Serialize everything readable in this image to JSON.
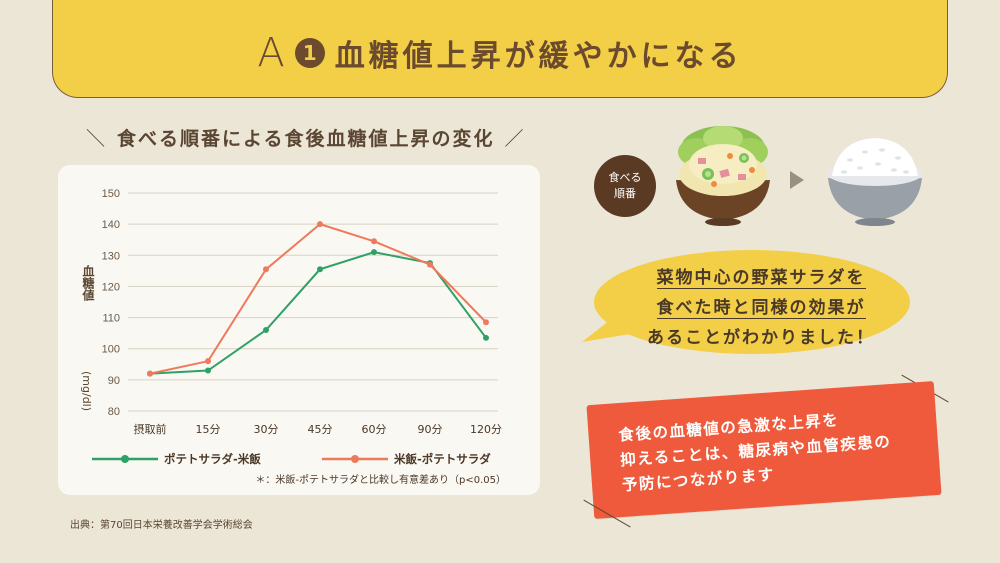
{
  "banner": {
    "letter": "A",
    "number": "1",
    "title": "血糖値上昇が緩やかになる"
  },
  "chart_heading": "食べる順番による食後血糖値上昇の変化",
  "chart_data": {
    "type": "line",
    "title": "食べる順番による食後血糖値上昇の変化",
    "ylabel": "血糖値 (mg/dl)",
    "xlabel": "",
    "categories": [
      "摂取前",
      "15分",
      "30分",
      "45分",
      "60分",
      "90分",
      "120分"
    ],
    "x": [
      0,
      15,
      30,
      45,
      60,
      90,
      120
    ],
    "ylim": [
      80,
      150
    ],
    "yticks": [
      80,
      90,
      100,
      110,
      120,
      130,
      140,
      150
    ],
    "grid": true,
    "legend_position": "bottom",
    "series": [
      {
        "name": "ポテトサラダ-米飯",
        "color": "#2fa066",
        "values": [
          92,
          93,
          106,
          125.5,
          131,
          127.5,
          103.5
        ]
      },
      {
        "name": "米飯-ポテトサラダ",
        "color": "#ee7a5e",
        "values": [
          92,
          96,
          125.5,
          140,
          134.5,
          127,
          108.5
        ]
      }
    ],
    "annotation": "＊：米飯-ポテトサラダと比較し有意差あり（p<0.05）"
  },
  "source": "出典：第70回日本栄養改善学会学術総会",
  "food": {
    "circle_line1": "食べる",
    "circle_line2": "順番",
    "salad_icon": "potato-salad-bowl-icon",
    "rice_icon": "rice-bowl-icon"
  },
  "bubble": {
    "line1": "菜物中心の野菜サラダを",
    "line2": "食べた時と同様の効果が",
    "line3": "あることがわかりました！"
  },
  "red_box": {
    "line1": "食後の血糖値の急激な上昇を",
    "line2": "抑えることは、糖尿病や血管疾患の",
    "line3": "予防につながります"
  },
  "colors": {
    "background": "#ece6d6",
    "banner": "#f3cf47",
    "green_series": "#2fa066",
    "red_series": "#ee7a5e",
    "bubble": "#f3cf47",
    "red_box": "#ef5a3c"
  }
}
